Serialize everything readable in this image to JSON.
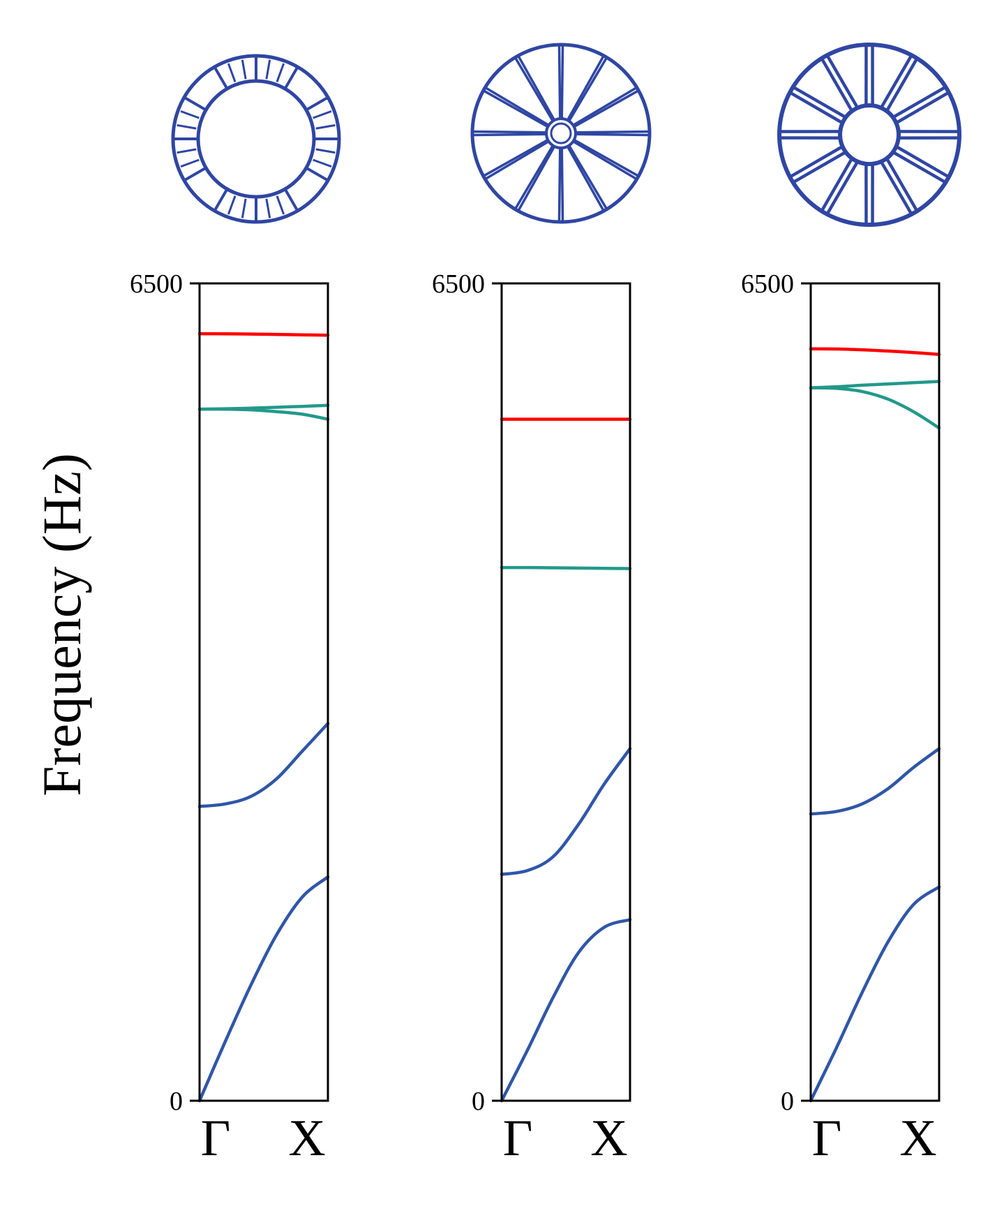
{
  "colors": {
    "structure": "#2f46a3",
    "band_acoustic": "#2f56a8",
    "band_green": "#22998a",
    "band_red": "#ff0000"
  },
  "ylabel": "Frequency (Hz)",
  "structures": [
    {
      "name": "ring-with-radial-ribs",
      "icon": "ring-unit-cell-icon"
    },
    {
      "name": "spoked-wheel-thin",
      "icon": "wheel-thin-hub-icon"
    },
    {
      "name": "spoked-wheel-large-hub",
      "icon": "wheel-large-hub-icon"
    }
  ],
  "chart_data": [
    {
      "type": "line",
      "xlabel": "",
      "ylabel": "Frequency (Hz)",
      "xticks": [
        "Γ",
        "X"
      ],
      "ylim": [
        0,
        6500
      ],
      "yticks": [
        0,
        6500
      ],
      "grid": false,
      "series": [
        {
          "color": "#2f56a8",
          "x": [
            0,
            0.2,
            0.4,
            0.6,
            0.8,
            1.0
          ],
          "values": [
            0,
            470,
            920,
            1320,
            1620,
            1780
          ]
        },
        {
          "color": "#2f56a8",
          "x": [
            0,
            0.2,
            0.4,
            0.6,
            0.8,
            1.0
          ],
          "values": [
            2340,
            2360,
            2420,
            2560,
            2780,
            3000
          ]
        },
        {
          "color": "#22998a",
          "x": [
            0,
            0.2,
            0.4,
            0.6,
            0.8,
            1.0
          ],
          "values": [
            5500,
            5500,
            5495,
            5480,
            5460,
            5420
          ]
        },
        {
          "color": "#22998a",
          "x": [
            0,
            0.2,
            0.4,
            0.6,
            0.8,
            1.0
          ],
          "values": [
            5500,
            5503,
            5508,
            5515,
            5522,
            5530
          ]
        },
        {
          "color": "#ff0000",
          "x": [
            0,
            0.2,
            0.4,
            0.6,
            0.8,
            1.0
          ],
          "values": [
            6100,
            6099,
            6097,
            6094,
            6091,
            6088
          ]
        }
      ]
    },
    {
      "type": "line",
      "xlabel": "",
      "ylabel": "",
      "xticks": [
        "Γ",
        "X"
      ],
      "ylim": [
        0,
        6500
      ],
      "yticks": [
        0,
        6500
      ],
      "grid": false,
      "series": [
        {
          "color": "#2f56a8",
          "x": [
            0,
            0.2,
            0.4,
            0.6,
            0.8,
            1.0
          ],
          "values": [
            0,
            400,
            820,
            1180,
            1380,
            1440
          ]
        },
        {
          "color": "#2f56a8",
          "x": [
            0,
            0.2,
            0.4,
            0.6,
            0.8,
            1.0
          ],
          "values": [
            1800,
            1830,
            1940,
            2200,
            2520,
            2800
          ]
        },
        {
          "color": "#22998a",
          "x": [
            0,
            0.2,
            0.4,
            0.6,
            0.8,
            1.0
          ],
          "values": [
            4240,
            4240,
            4238,
            4236,
            4234,
            4232
          ]
        },
        {
          "color": "#ff0000",
          "x": [
            0,
            0.2,
            0.4,
            0.6,
            0.8,
            1.0
          ],
          "values": [
            5420,
            5420,
            5420,
            5420,
            5420,
            5420
          ]
        }
      ]
    },
    {
      "type": "line",
      "xlabel": "",
      "ylabel": "",
      "xticks": [
        "Γ",
        "X"
      ],
      "ylim": [
        0,
        6500
      ],
      "yticks": [
        0,
        6500
      ],
      "grid": false,
      "series": [
        {
          "color": "#2f56a8",
          "x": [
            0,
            0.2,
            0.4,
            0.6,
            0.8,
            1.0
          ],
          "values": [
            0,
            420,
            860,
            1260,
            1560,
            1700
          ]
        },
        {
          "color": "#2f56a8",
          "x": [
            0,
            0.2,
            0.4,
            0.6,
            0.8,
            1.0
          ],
          "values": [
            2280,
            2300,
            2360,
            2480,
            2650,
            2800
          ]
        },
        {
          "color": "#22998a",
          "x": [
            0,
            0.2,
            0.4,
            0.6,
            0.8,
            1.0
          ],
          "values": [
            5670,
            5665,
            5640,
            5580,
            5480,
            5350
          ]
        },
        {
          "color": "#22998a",
          "x": [
            0,
            0.2,
            0.4,
            0.6,
            0.8,
            1.0
          ],
          "values": [
            5670,
            5678,
            5690,
            5700,
            5710,
            5720
          ]
        },
        {
          "color": "#ff0000",
          "x": [
            0,
            0.2,
            0.4,
            0.6,
            0.8,
            1.0
          ],
          "values": [
            5980,
            5978,
            5972,
            5962,
            5950,
            5935
          ]
        }
      ]
    }
  ]
}
